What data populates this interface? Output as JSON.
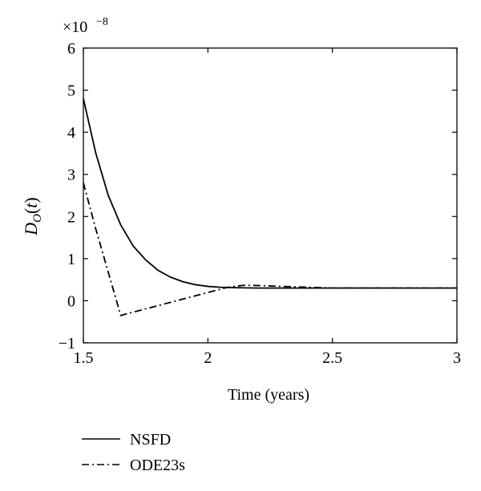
{
  "chart_data": {
    "type": "line",
    "xlabel": "Time (years)",
    "ylabel": {
      "main": "D",
      "sub": "O",
      "open": "(",
      "arg": "t",
      "close": ")"
    },
    "y_exponent": {
      "prefix": "×10",
      "power": "−8"
    },
    "xlim": [
      1.5,
      3
    ],
    "ylim": [
      -1,
      6
    ],
    "xticks": [
      1.5,
      2,
      2.5,
      3
    ],
    "xtick_labels": [
      "1.5",
      "2",
      "2.5",
      "3"
    ],
    "yticks": [
      -1,
      0,
      1,
      2,
      3,
      4,
      5,
      6
    ],
    "ytick_labels": [
      "−1",
      "0",
      "1",
      "2",
      "3",
      "4",
      "5",
      "6"
    ],
    "grid": false,
    "legend_position": "bottom-left, outside plot",
    "series": [
      {
        "name": "NSFD",
        "style": "solid",
        "color": "#000000",
        "x": [
          1.5,
          1.55,
          1.6,
          1.65,
          1.7,
          1.75,
          1.8,
          1.85,
          1.9,
          1.95,
          2.0,
          2.05,
          2.1,
          2.2,
          2.4,
          2.6,
          2.8,
          3.0
        ],
        "y": [
          4.8,
          3.5,
          2.5,
          1.8,
          1.3,
          0.97,
          0.72,
          0.56,
          0.45,
          0.38,
          0.34,
          0.32,
          0.31,
          0.3,
          0.3,
          0.3,
          0.3,
          0.3
        ]
      },
      {
        "name": "ODE23s",
        "style": "dash-dot",
        "color": "#000000",
        "x": [
          1.5,
          1.55,
          1.65,
          2.08,
          2.15,
          2.5,
          3.0
        ],
        "y": [
          2.8,
          1.7,
          -0.35,
          0.32,
          0.37,
          0.3,
          0.3
        ]
      }
    ]
  }
}
